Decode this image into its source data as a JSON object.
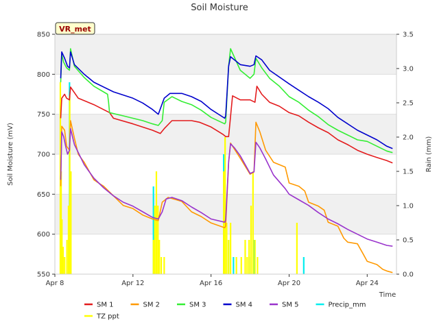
{
  "chart_data": {
    "type": "line",
    "title": "Soil Moisture",
    "station_label": "VR_met",
    "xlabel": "Time",
    "ylabel": "Soil Moisture (mV)",
    "y2label": "Rain (mm)",
    "xlim": [
      8,
      25.5
    ],
    "ylim": [
      550,
      850
    ],
    "y2lim": [
      0,
      3.5
    ],
    "xticks": [
      8,
      12,
      16,
      20,
      24
    ],
    "xtick_labels": [
      "Apr 8",
      "Apr 12",
      "Apr 16",
      "Apr 20",
      "Apr 24"
    ],
    "yticks": [
      550,
      600,
      650,
      700,
      750,
      800,
      850
    ],
    "y2ticks": [
      0.0,
      0.5,
      1.0,
      1.5,
      2.0,
      2.5,
      3.0,
      3.5
    ],
    "y2tick_labels": [
      "0.0",
      "0.5",
      "1.0",
      "1.5",
      "2.0",
      "2.5",
      "3.0",
      "3.5"
    ],
    "series": [
      {
        "name": "SM 1",
        "color": "#e31a1c",
        "axis": "left",
        "x": [
          8.3,
          8.35,
          8.5,
          8.6,
          8.75,
          8.8,
          9.2,
          10.0,
          10.8,
          11.0,
          12.0,
          13.0,
          13.4,
          13.6,
          14.0,
          15.0,
          15.4,
          16.0,
          16.6,
          16.75,
          16.9,
          17.1,
          17.5,
          18.0,
          18.25,
          18.35,
          18.6,
          19.0,
          19.5,
          20.0,
          20.5,
          21.0,
          21.5,
          22.0,
          22.5,
          23.0,
          23.5,
          24.0,
          24.5,
          25.0,
          25.3
        ],
        "y": [
          745,
          770,
          775,
          770,
          768,
          784,
          770,
          762,
          752,
          745,
          738,
          730,
          726,
          732,
          742,
          742,
          740,
          734,
          725,
          722,
          722,
          773,
          768,
          768,
          765,
          785,
          775,
          765,
          760,
          752,
          748,
          740,
          733,
          727,
          718,
          712,
          705,
          700,
          696,
          692,
          689
        ]
      },
      {
        "name": "SM 2",
        "color": "#ff9900",
        "axis": "left",
        "x": [
          8.3,
          8.35,
          8.5,
          8.6,
          8.75,
          8.8,
          9.0,
          9.2,
          9.5,
          10.0,
          10.3,
          10.5,
          11.0,
          11.5,
          12.0,
          12.5,
          13.0,
          13.3,
          13.5,
          13.8,
          14.5,
          15.0,
          15.5,
          16.0,
          16.7,
          16.75,
          16.9,
          17.0,
          17.5,
          18.0,
          18.2,
          18.3,
          18.5,
          18.8,
          19.2,
          19.8,
          20.0,
          20.5,
          20.8,
          21.0,
          21.5,
          21.8,
          22.0,
          22.5,
          22.8,
          23.0,
          23.5,
          23.8,
          24.0,
          24.5,
          24.8,
          25.0,
          25.3
        ],
        "y": [
          660,
          735,
          730,
          710,
          705,
          742,
          720,
          700,
          690,
          668,
          663,
          660,
          648,
          636,
          632,
          624,
          619,
          617,
          640,
          646,
          641,
          628,
          622,
          614,
          608,
          610,
          690,
          714,
          695,
          675,
          678,
          740,
          728,
          705,
          690,
          684,
          664,
          660,
          654,
          640,
          635,
          630,
          615,
          610,
          595,
          590,
          588,
          575,
          566,
          562,
          556,
          554,
          552
        ]
      },
      {
        "name": "SM 3",
        "color": "#33ee33",
        "axis": "left",
        "x": [
          8.3,
          8.35,
          8.45,
          8.6,
          8.75,
          8.8,
          9.0,
          9.5,
          10.0,
          10.7,
          10.75,
          10.8,
          11.5,
          12.0,
          12.5,
          13.0,
          13.3,
          13.5,
          13.6,
          14.0,
          14.5,
          15.0,
          15.5,
          16.0,
          16.7,
          16.75,
          16.9,
          17.0,
          17.5,
          18.0,
          18.2,
          18.3,
          18.6,
          19.0,
          19.5,
          20.0,
          20.5,
          21.0,
          21.5,
          22.0,
          22.5,
          23.0,
          23.5,
          24.0,
          24.5,
          25.0,
          25.3
        ],
        "y": [
          790,
          825,
          815,
          808,
          805,
          832,
          810,
          796,
          785,
          775,
          765,
          752,
          748,
          745,
          742,
          738,
          736,
          742,
          765,
          772,
          766,
          762,
          755,
          746,
          738,
          740,
          810,
          832,
          805,
          795,
          800,
          820,
          808,
          795,
          785,
          772,
          765,
          755,
          747,
          737,
          730,
          724,
          718,
          716,
          710,
          704,
          702
        ]
      },
      {
        "name": "SM 4",
        "color": "#0000cc",
        "axis": "left",
        "x": [
          8.3,
          8.35,
          8.5,
          8.65,
          8.75,
          8.8,
          9.0,
          9.5,
          10.0,
          11.0,
          12.0,
          12.5,
          13.0,
          13.3,
          13.6,
          13.9,
          14.5,
          15.0,
          15.5,
          16.0,
          16.7,
          16.75,
          16.9,
          17.0,
          17.5,
          18.0,
          18.2,
          18.3,
          18.6,
          19.0,
          20.0,
          20.5,
          21.0,
          21.5,
          22.0,
          22.5,
          23.0,
          23.5,
          24.0,
          24.5,
          25.0,
          25.3
        ],
        "y": [
          795,
          828,
          820,
          810,
          808,
          828,
          812,
          800,
          790,
          778,
          770,
          764,
          756,
          750,
          770,
          776,
          776,
          772,
          766,
          756,
          745,
          748,
          810,
          822,
          812,
          810,
          812,
          823,
          818,
          805,
          788,
          780,
          772,
          765,
          757,
          746,
          738,
          730,
          724,
          718,
          710,
          707
        ]
      },
      {
        "name": "SM 5",
        "color": "#9933cc",
        "axis": "left",
        "x": [
          8.3,
          8.35,
          8.45,
          8.55,
          8.65,
          8.75,
          8.8,
          9.0,
          9.5,
          10.0,
          10.5,
          11.0,
          11.5,
          12.0,
          12.5,
          13.0,
          13.3,
          13.5,
          13.7,
          14.0,
          14.5,
          15.0,
          15.5,
          16.0,
          16.7,
          16.75,
          16.9,
          17.0,
          17.2,
          17.5,
          18.0,
          18.2,
          18.3,
          18.5,
          18.8,
          19.2,
          19.8,
          20.0,
          20.5,
          21.0,
          21.5,
          22.0,
          22.5,
          23.0,
          23.5,
          24.0,
          24.5,
          25.0,
          25.3
        ],
        "y": [
          668,
          728,
          722,
          710,
          700,
          705,
          732,
          712,
          687,
          670,
          658,
          648,
          640,
          635,
          628,
          621,
          619,
          628,
          644,
          646,
          642,
          634,
          627,
          619,
          615,
          618,
          690,
          713,
          708,
          698,
          676,
          678,
          715,
          708,
          694,
          674,
          657,
          650,
          643,
          636,
          627,
          619,
          613,
          606,
          600,
          594,
          590,
          586,
          585
        ]
      },
      {
        "name": "Precip_mm",
        "color": "#00eeee",
        "axis": "right",
        "style": "bars",
        "x": [
          8.35,
          8.75,
          13.05,
          16.65,
          16.9,
          17.15,
          17.95,
          18.2,
          20.75
        ],
        "y": [
          0.25,
          2.8,
          1.28,
          1.75,
          0.5,
          0.25,
          0.25,
          0.5,
          0.25
        ]
      },
      {
        "name": "TZ ppt",
        "color": "#ffff00",
        "axis": "right",
        "style": "bars",
        "x": [
          8.28,
          8.32,
          8.36,
          8.42,
          8.5,
          8.62,
          8.7,
          8.76,
          8.82,
          13.05,
          13.12,
          13.2,
          13.28,
          13.35,
          13.45,
          13.6,
          16.65,
          16.72,
          16.8,
          16.9,
          17.0,
          17.3,
          17.55,
          17.75,
          17.85,
          17.95,
          18.05,
          18.15,
          18.25,
          18.38,
          20.4
        ],
        "y": [
          2.8,
          1.5,
          0.8,
          0.4,
          0.25,
          0.5,
          1.0,
          2.6,
          1.5,
          0.5,
          1.0,
          1.5,
          1.0,
          0.5,
          0.25,
          0.25,
          1.5,
          2.0,
          0.75,
          0.5,
          0.75,
          0.25,
          0.25,
          0.5,
          0.25,
          0.5,
          1.0,
          1.5,
          0.5,
          0.25,
          0.75
        ]
      }
    ],
    "legend_position": "bottom"
  }
}
